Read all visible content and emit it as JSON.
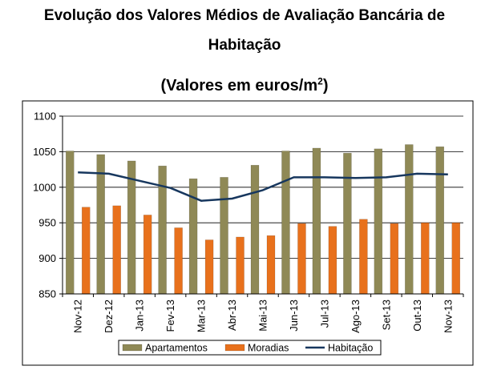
{
  "title_line1": "Evolução dos Valores Médios de Avaliação Bancária de",
  "title_line2": "Habitação",
  "subtitle_main": "(Valores em euros/m",
  "subtitle_sup": "2",
  "subtitle_end": ")",
  "chart_data": {
    "type": "bar",
    "categories": [
      "Nov-12",
      "Dez-12",
      "Jan-13",
      "Fev-13",
      "Mar-13",
      "Abr-13",
      "Mai-13",
      "Jun-13",
      "Jul-13",
      "Ago-13",
      "Set-13",
      "Out-13",
      "Nov-13"
    ],
    "series": [
      {
        "name": "Apartamentos",
        "type": "bar",
        "color": "#8f8956",
        "values": [
          1051,
          1046,
          1037,
          1030,
          1012,
          1014,
          1031,
          1051,
          1055,
          1048,
          1054,
          1060,
          1057
        ]
      },
      {
        "name": "Moradias",
        "type": "bar",
        "color": "#e8711c",
        "values": [
          972,
          974,
          961,
          943,
          926,
          930,
          932,
          949,
          945,
          955,
          949,
          950,
          950
        ]
      },
      {
        "name": "Habitação",
        "type": "line",
        "color": "#17375e",
        "values": [
          1021,
          1019,
          1009,
          999,
          981,
          984,
          996,
          1014,
          1014,
          1013,
          1014,
          1019,
          1018
        ]
      }
    ],
    "ylim": [
      850,
      1100
    ],
    "yticks": [
      850,
      900,
      950,
      1000,
      1050,
      1100
    ],
    "grid": true,
    "legend": "bottom"
  }
}
